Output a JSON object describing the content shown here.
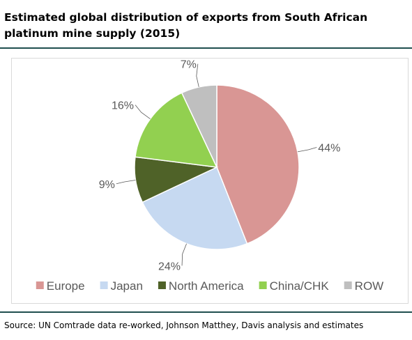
{
  "header": {
    "title": "Estimated global distribution of exports from South African platinum mine supply (2015)"
  },
  "footer": {
    "source": "Source: UN Comtrade data re-worked, Johnson Matthey, Davis analysis and estimates"
  },
  "theme": {
    "rule_color": "#1f4e4e",
    "label_color": "#595959",
    "leader_color": "#595959"
  },
  "chart_data": {
    "type": "pie",
    "title": "Estimated global distribution of exports from South African platinum mine supply (2015)",
    "categories": [
      "Europe",
      "Japan",
      "North America",
      "China/CHK",
      "ROW"
    ],
    "values": [
      44,
      24,
      9,
      16,
      7
    ],
    "value_labels": [
      "44%",
      "24%",
      "9%",
      "16%",
      "7%"
    ],
    "colors": [
      "#d99694",
      "#c6d9f1",
      "#4f6228",
      "#92d050",
      "#bfbfbf"
    ],
    "legend_position": "bottom",
    "start_angle_deg": 0,
    "direction": "clockwise"
  }
}
